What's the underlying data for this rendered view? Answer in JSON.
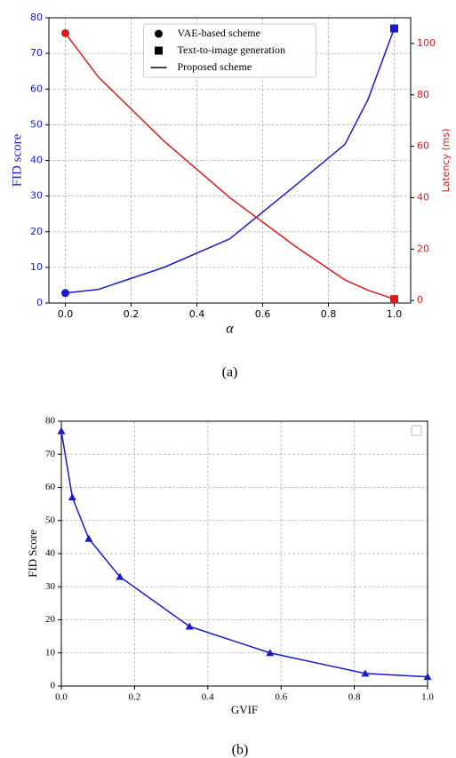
{
  "chart_data": [
    {
      "type": "line",
      "x_label": "α",
      "y_label": "FID score",
      "y2_label": "Latency (ms)",
      "caption": "(a)",
      "x": [
        0.0,
        0.1,
        0.3,
        0.5,
        0.7,
        0.85,
        0.92,
        1.0
      ],
      "series": [
        {
          "color": "#1a1ac8",
          "values": [
            2.8,
            3.8,
            10,
            18,
            33,
            44.5,
            57,
            77
          ],
          "marker_first": "circle",
          "marker_last": "square"
        },
        {
          "color": "#d81c1c",
          "axis": "y2",
          "values": [
            104,
            87,
            62,
            40,
            21,
            8,
            4,
            0.5
          ],
          "marker_first": "circle",
          "marker_last": "square"
        }
      ],
      "xlim": [
        -0.05,
        1.05
      ],
      "xticks": [
        {
          "value": 0.0,
          "label": "0.0"
        },
        0.2,
        0.4,
        0.6,
        0.8,
        {
          "value": 1.0,
          "label": "1.0"
        }
      ],
      "ylim": [
        0,
        80
      ],
      "yticks": [
        0,
        10,
        20,
        30,
        40,
        50,
        60,
        70,
        80
      ],
      "y2lim": [
        -1,
        110
      ],
      "y2ticks": [
        0,
        20,
        40,
        60,
        80,
        100
      ],
      "grid": true,
      "color_axes": true,
      "legend": "upper center",
      "legend_items": [
        {
          "label": "VAE-based scheme",
          "marker": "circle"
        },
        {
          "label": "Text-to-image generation",
          "marker": "square"
        },
        {
          "label": "Proposed scheme",
          "marker": "line"
        }
      ]
    },
    {
      "type": "line",
      "x_label": "GVIF",
      "y_label": "FID Score",
      "caption": "(b)",
      "x": [
        0.0,
        0.03,
        0.075,
        0.16,
        0.35,
        0.57,
        0.83,
        1.0
      ],
      "series": [
        {
          "color": "#1a1ac8",
          "values": [
            77,
            57,
            44.5,
            33,
            18,
            10,
            3.8,
            2.8
          ],
          "marker": "triangle"
        }
      ],
      "xlim": [
        0,
        1
      ],
      "xticks": [
        {
          "value": 0.0,
          "label": "0.0"
        },
        0.2,
        0.4,
        0.6,
        0.8,
        {
          "value": 1.0,
          "label": "1.0"
        }
      ],
      "ylim": [
        0,
        80
      ],
      "yticks": [
        0,
        10,
        20,
        30,
        40,
        50,
        60,
        70,
        80
      ],
      "grid": true,
      "color_axes": false
    }
  ]
}
